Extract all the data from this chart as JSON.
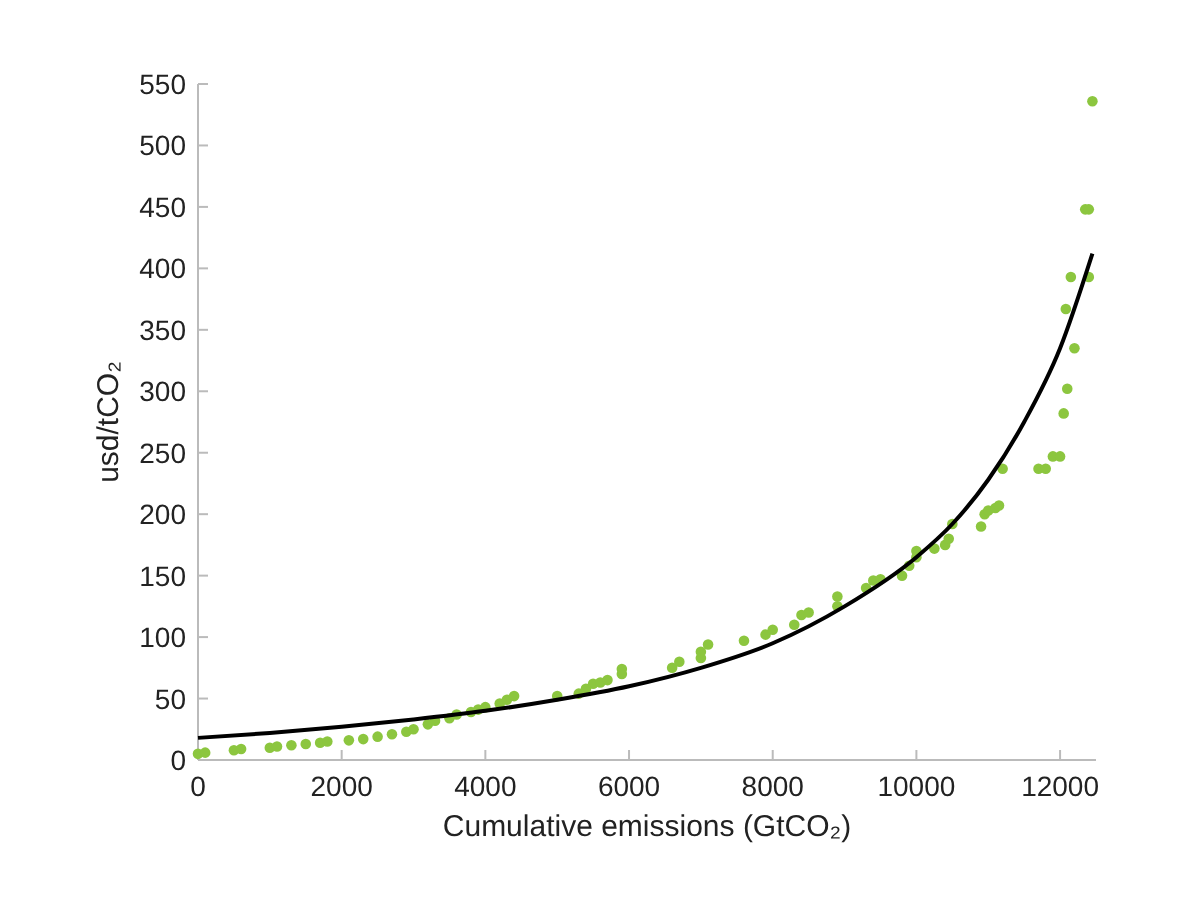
{
  "chart_data": {
    "type": "scatter",
    "xlabel": "Cumulative emissions (GtCO₂)",
    "ylabel": "usd/tCO₂",
    "xlim": [
      0,
      12500
    ],
    "xticks": [
      0,
      2000,
      4000,
      6000,
      8000,
      10000,
      12000
    ],
    "ylim": [
      0,
      550
    ],
    "yticks": [
      0,
      50,
      100,
      150,
      200,
      250,
      300,
      350,
      400,
      450,
      500,
      550
    ],
    "grid": false,
    "marker": "circle",
    "series": [
      {
        "color": "#8cc63f",
        "x": [
          0,
          100,
          500,
          600,
          1000,
          1100,
          1300,
          1500,
          1700,
          1800,
          2100,
          2300,
          2500,
          2700,
          2900,
          3000,
          3200,
          3300,
          3500,
          3600,
          3800,
          3900,
          4000,
          4200,
          4300,
          4400,
          5000,
          5300,
          5400,
          5500,
          5600,
          5700,
          5900,
          5900,
          6600,
          6700,
          7000,
          7000,
          7100,
          7600,
          7900,
          8000,
          8300,
          8400,
          8500,
          8900,
          8900,
          9300,
          9400,
          9500,
          9800,
          9900,
          10000,
          10000,
          10250,
          10400,
          10450,
          10500,
          10900,
          10950,
          11000,
          11100,
          11150,
          11200,
          11700,
          11800,
          11900,
          12000,
          12050,
          12100,
          12200,
          12080,
          12150,
          12400,
          12350,
          12400,
          12450
        ],
        "values": [
          5,
          6,
          8,
          9,
          10,
          11,
          12,
          13,
          14,
          15,
          16,
          17,
          19,
          21,
          23,
          25,
          29,
          32,
          34,
          37,
          39,
          41,
          43,
          46,
          49,
          52,
          52,
          54,
          58,
          62,
          63,
          65,
          70,
          74,
          75,
          80,
          83,
          88,
          94,
          97,
          102,
          106,
          110,
          118,
          120,
          125,
          133,
          140,
          146,
          147,
          150,
          158,
          165,
          170,
          172,
          175,
          180,
          192,
          190,
          200,
          203,
          205,
          207,
          237,
          237,
          237,
          247,
          247,
          282,
          302,
          335,
          367,
          393,
          393,
          448,
          448,
          536
        ]
      },
      {
        "type": "line",
        "color": "#000000",
        "marker": "none",
        "line_style": "solid",
        "x": [
          0,
          1000,
          2000,
          3000,
          4000,
          5000,
          6000,
          7000,
          8000,
          9000,
          10000,
          10500,
          11000,
          11500,
          12000,
          12450
        ],
        "values": [
          18,
          22,
          27,
          33,
          40,
          49,
          60,
          75,
          95,
          125,
          165,
          192,
          228,
          275,
          335,
          412
        ]
      }
    ]
  }
}
